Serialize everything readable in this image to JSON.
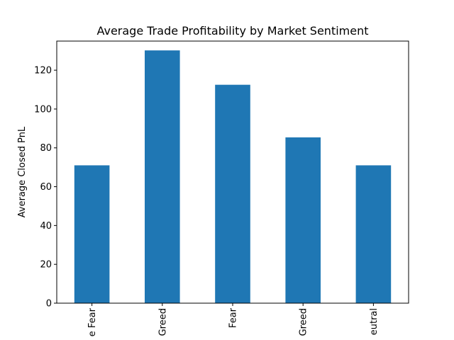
{
  "chart_data": {
    "type": "bar",
    "title": "Average Trade Profitability by Market Sentiment",
    "xlabel": "",
    "ylabel": "Average Closed PnL",
    "categories": [
      "e Fear",
      "Greed",
      "Fear",
      "Greed",
      "eutral"
    ],
    "values": [
      71,
      130.2,
      112.5,
      85.4,
      71
    ],
    "ylim": [
      0,
      135
    ],
    "yticks": [
      0,
      20,
      40,
      60,
      80,
      100,
      120
    ],
    "grid": false,
    "legend": "none",
    "bar_color": "#1f77b4"
  }
}
